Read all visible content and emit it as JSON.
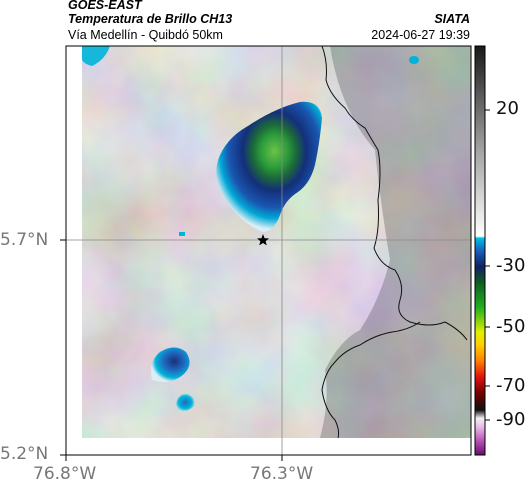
{
  "header": {
    "satellite": "GOES-EAST",
    "product": "Temperatura de Brillo CH13",
    "region": "Vía Medellín - Quibdó 50km",
    "source": "SIATA",
    "datetime": "2024-06-27 19:39"
  },
  "axes": {
    "lat_labels": [
      "5.7°N",
      "5.2°N"
    ],
    "lon_labels": [
      "76.8°W",
      "76.3°W"
    ]
  },
  "colorbar": {
    "ticks": [
      "20",
      "-30",
      "-50",
      "-70",
      "-90"
    ]
  },
  "markers": {
    "location": "star-marker"
  },
  "colors": {
    "cold_core": "#1f4fa0",
    "deep_core": "#1aa04a",
    "edge": "#00b8d8"
  }
}
